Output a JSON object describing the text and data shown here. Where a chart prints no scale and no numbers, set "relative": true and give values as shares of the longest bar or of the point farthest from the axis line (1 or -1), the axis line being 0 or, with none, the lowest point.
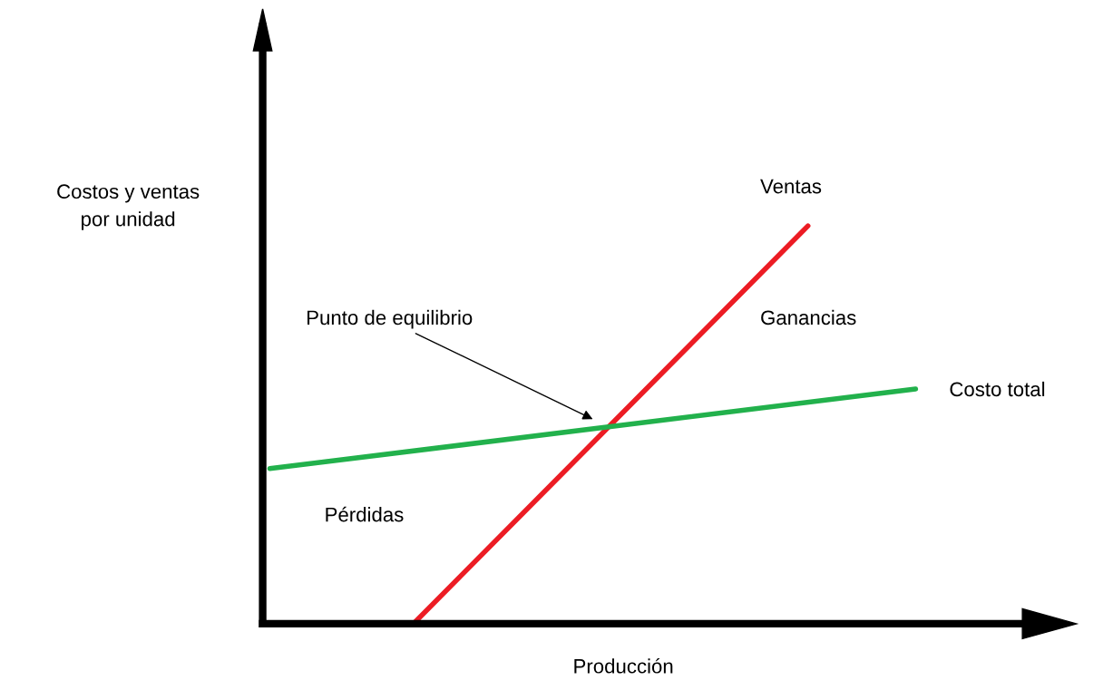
{
  "chart_data": {
    "type": "line",
    "relative": true,
    "xlabel": "Producción",
    "ylabel": "Costos y ventas\npor unidad",
    "marker": "none",
    "line_style": "solid",
    "categories": [
      null,
      null,
      null,
      null,
      null,
      null,
      null,
      null,
      null,
      null,
      null,
      null,
      null,
      null,
      null,
      null,
      null,
      null,
      null,
      null,
      null,
      null
    ],
    "series": [
      {
        "name": "Ventas",
        "color": "#ec1c24",
        "values": [
          null,
          null,
          null,
          null,
          0,
          null,
          null,
          null,
          null,
          null,
          null,
          null,
          null,
          null,
          null,
          1,
          null,
          null,
          null,
          null,
          null,
          null
        ]
      },
      {
        "name": "Costo total",
        "color": "#22b14c",
        "values": [
          0.39,
          null,
          null,
          null,
          null,
          null,
          null,
          null,
          null,
          null,
          null,
          null,
          null,
          null,
          null,
          null,
          null,
          null,
          0.59,
          null,
          null,
          null
        ]
      }
    ],
    "annotations": [
      "Punto de equilibrio",
      "Pérdidas",
      "Ganancias"
    ]
  }
}
